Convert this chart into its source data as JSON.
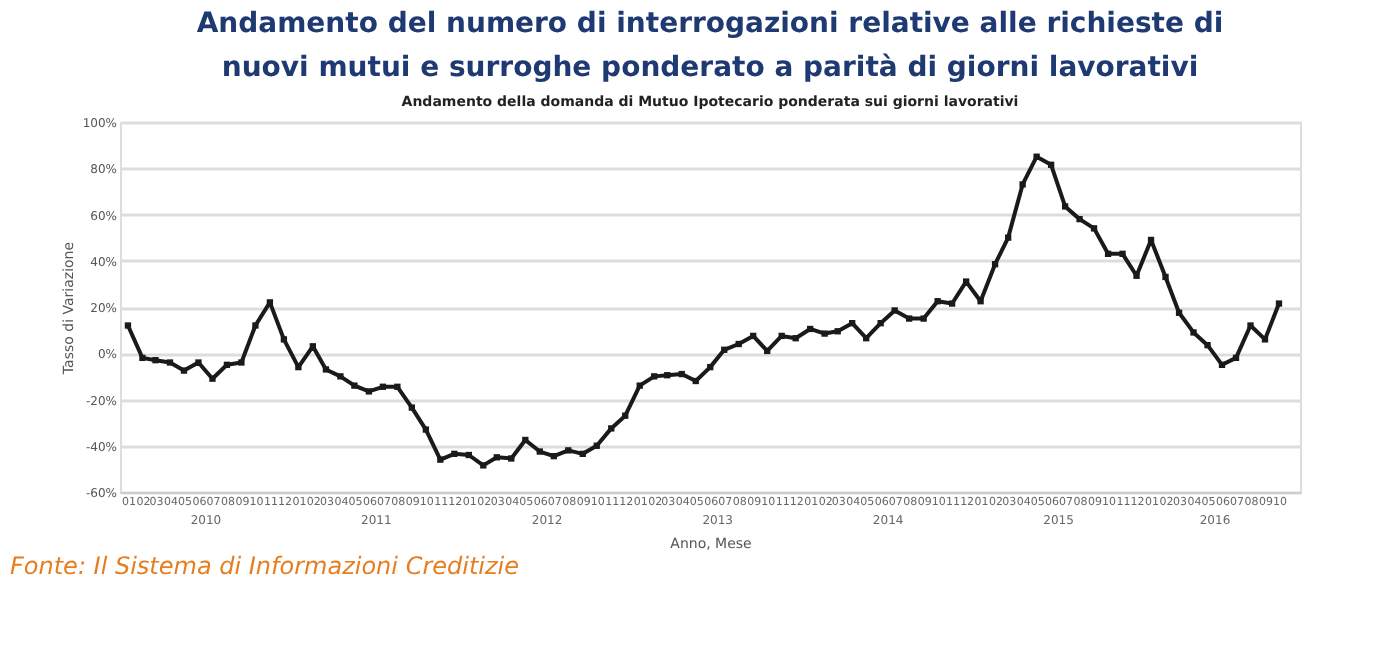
{
  "chart_data": {
    "type": "line",
    "title": "Andamento del numero di interrogazioni relative alle richieste di nuovi mutui e surroghe ponderato a parità di giorni lavorativi",
    "subtitle": "Andamento della domanda di Mutuo Ipotecario ponderata sui giorni lavorativi",
    "xlabel": "Anno, Mese",
    "ylabel": "Tasso di Variazione",
    "annotations": [
      "Fonte: Il Sistema di Informazioni Creditizie",
      "2010",
      "2011",
      "2012",
      "2013",
      "2014",
      "2015",
      "2016"
    ],
    "xticks": [
      {
        "value": "2010-01",
        "label": "01"
      },
      {
        "value": "2010-02",
        "label": "02"
      },
      {
        "value": "2010-03",
        "label": "03"
      },
      {
        "value": "2010-04",
        "label": "04"
      },
      {
        "value": "2010-05",
        "label": "05"
      },
      {
        "value": "2010-06",
        "label": "06"
      },
      {
        "value": "2010-07",
        "label": "07"
      },
      {
        "value": "2010-08",
        "label": "08"
      },
      {
        "value": "2010-09",
        "label": "09"
      },
      {
        "value": "2010-10",
        "label": "10"
      },
      {
        "value": "2010-11",
        "label": "11"
      },
      {
        "value": "2010-12",
        "label": "12"
      },
      {
        "value": "2011-01",
        "label": "01"
      },
      {
        "value": "2011-02",
        "label": "02"
      },
      {
        "value": "2011-03",
        "label": "03"
      },
      {
        "value": "2011-04",
        "label": "04"
      },
      {
        "value": "2011-05",
        "label": "05"
      },
      {
        "value": "2011-06",
        "label": "06"
      },
      {
        "value": "2011-07",
        "label": "07"
      },
      {
        "value": "2011-08",
        "label": "08"
      },
      {
        "value": "2011-09",
        "label": "09"
      },
      {
        "value": "2011-10",
        "label": "10"
      },
      {
        "value": "2011-11",
        "label": "11"
      },
      {
        "value": "2011-12",
        "label": "12"
      },
      {
        "value": "2012-01",
        "label": "01"
      },
      {
        "value": "2012-02",
        "label": "02"
      },
      {
        "value": "2012-03",
        "label": "03"
      },
      {
        "value": "2012-04",
        "label": "04"
      },
      {
        "value": "2012-05",
        "label": "05"
      },
      {
        "value": "2012-06",
        "label": "06"
      },
      {
        "value": "2012-07",
        "label": "07"
      },
      {
        "value": "2012-08",
        "label": "08"
      },
      {
        "value": "2012-09",
        "label": "09"
      },
      {
        "value": "2012-10",
        "label": "10"
      },
      {
        "value": "2012-11",
        "label": "11"
      },
      {
        "value": "2012-12",
        "label": "12"
      },
      {
        "value": "2013-01",
        "label": "01"
      },
      {
        "value": "2013-02",
        "label": "02"
      },
      {
        "value": "2013-03",
        "label": "03"
      },
      {
        "value": "2013-04",
        "label": "04"
      },
      {
        "value": "2013-05",
        "label": "05"
      },
      {
        "value": "2013-06",
        "label": "06"
      },
      {
        "value": "2013-07",
        "label": "07"
      },
      {
        "value": "2013-08",
        "label": "08"
      },
      {
        "value": "2013-09",
        "label": "09"
      },
      {
        "value": "2013-10",
        "label": "10"
      },
      {
        "value": "2013-11",
        "label": "11"
      },
      {
        "value": "2013-12",
        "label": "12"
      },
      {
        "value": "2014-01",
        "label": "01"
      },
      {
        "value": "2014-02",
        "label": "02"
      },
      {
        "value": "2014-03",
        "label": "03"
      },
      {
        "value": "2014-04",
        "label": "04"
      },
      {
        "value": "2014-05",
        "label": "05"
      },
      {
        "value": "2014-06",
        "label": "06"
      },
      {
        "value": "2014-07",
        "label": "07"
      },
      {
        "value": "2014-08",
        "label": "08"
      },
      {
        "value": "2014-09",
        "label": "09"
      },
      {
        "value": "2014-10",
        "label": "10"
      },
      {
        "value": "2014-11",
        "label": "11"
      },
      {
        "value": "2014-12",
        "label": "12"
      },
      {
        "value": "2015-01",
        "label": "01"
      },
      {
        "value": "2015-02",
        "label": "02"
      },
      {
        "value": "2015-03",
        "label": "03"
      },
      {
        "value": "2015-04",
        "label": "04"
      },
      {
        "value": "2015-05",
        "label": "05"
      },
      {
        "value": "2015-06",
        "label": "06"
      },
      {
        "value": "2015-07",
        "label": "07"
      },
      {
        "value": "2015-08",
        "label": "08"
      },
      {
        "value": "2015-09",
        "label": "09"
      },
      {
        "value": "2015-10",
        "label": "10"
      },
      {
        "value": "2015-11",
        "label": "11"
      },
      {
        "value": "2015-12",
        "label": "12"
      },
      {
        "value": "2016-01",
        "label": "01"
      },
      {
        "value": "2016-02",
        "label": "02"
      },
      {
        "value": "2016-03",
        "label": "03"
      },
      {
        "value": "2016-04",
        "label": "04"
      },
      {
        "value": "2016-05",
        "label": "05"
      },
      {
        "value": "2016-06",
        "label": "06"
      },
      {
        "value": "2016-07",
        "label": "07"
      },
      {
        "value": "2016-08",
        "label": "08"
      },
      {
        "value": "2016-09",
        "label": "09"
      },
      {
        "value": "2016-10",
        "label": "10"
      }
    ],
    "x": [
      "2010-01",
      "2010-02",
      "2010-03",
      "2010-04",
      "2010-05",
      "2010-06",
      "2010-07",
      "2010-08",
      "2010-09",
      "2010-10",
      "2010-11",
      "2010-12",
      "2011-01",
      "2011-02",
      "2011-03",
      "2011-04",
      "2011-05",
      "2011-06",
      "2011-07",
      "2011-08",
      "2011-09",
      "2011-10",
      "2011-11",
      "2011-12",
      "2012-01",
      "2012-02",
      "2012-03",
      "2012-04",
      "2012-05",
      "2012-06",
      "2012-07",
      "2012-08",
      "2012-09",
      "2012-10",
      "2012-11",
      "2012-12",
      "2013-01",
      "2013-02",
      "2013-03",
      "2013-04",
      "2013-05",
      "2013-06",
      "2013-07",
      "2013-08",
      "2013-09",
      "2013-10",
      "2013-11",
      "2013-12",
      "2014-01",
      "2014-02",
      "2014-03",
      "2014-04",
      "2014-05",
      "2014-06",
      "2014-07",
      "2014-08",
      "2014-09",
      "2014-10",
      "2014-11",
      "2014-12",
      "2015-01",
      "2015-02",
      "2015-03",
      "2015-04",
      "2015-05",
      "2015-06",
      "2015-07",
      "2015-08",
      "2015-09",
      "2015-10",
      "2015-11",
      "2015-12",
      "2016-01",
      "2016-02",
      "2016-03",
      "2016-04",
      "2016-05",
      "2016-06",
      "2016-07",
      "2016-08",
      "2016-09",
      "2016-10"
    ],
    "series": [
      {
        "color": "#1a1a1a",
        "values": [
          12,
          -2,
          -3,
          -4,
          -7.5,
          -4,
          -11,
          -5,
          -4,
          12,
          22,
          6,
          -6,
          3,
          -7,
          -10,
          -14,
          -16.5,
          -14.5,
          -14.5,
          -23.5,
          -33,
          -46,
          -43.5,
          -44,
          -48.5,
          -45,
          -45.5,
          -37.5,
          -42.5,
          -44.5,
          -42,
          -43.5,
          -40,
          -32.5,
          -27,
          -14,
          -10,
          -9.5,
          -9,
          -12,
          -6,
          1.5,
          4,
          7.5,
          1,
          7.5,
          6.5,
          10.5,
          8.5,
          9.5,
          13,
          6.5,
          13,
          18.5,
          15,
          15,
          22.5,
          21.5,
          31,
          22.5,
          38.5,
          50,
          73,
          85,
          81.5,
          63.5,
          58,
          54,
          43,
          43,
          33.5,
          49,
          33,
          17.5,
          9,
          3.5,
          -5,
          -2,
          12,
          6,
          21.5
        ]
      }
    ],
    "xlim": [
      "2009-12-15",
      "2016-11-15"
    ],
    "ylim": [
      -60,
      100
    ],
    "yticks": [
      {
        "value": -60,
        "label": "-60%"
      },
      {
        "value": -40,
        "label": "-40%"
      },
      {
        "value": -20,
        "label": "-20%"
      },
      {
        "value": 0,
        "label": "0%"
      },
      {
        "value": 20,
        "label": "20%"
      },
      {
        "value": 40,
        "label": "40%"
      },
      {
        "value": 60,
        "label": "60%"
      },
      {
        "value": 80,
        "label": "80%"
      },
      {
        "value": 100,
        "label": "100%"
      }
    ],
    "grid": "y",
    "legend": false,
    "marker": "square",
    "line_style": "solid"
  }
}
